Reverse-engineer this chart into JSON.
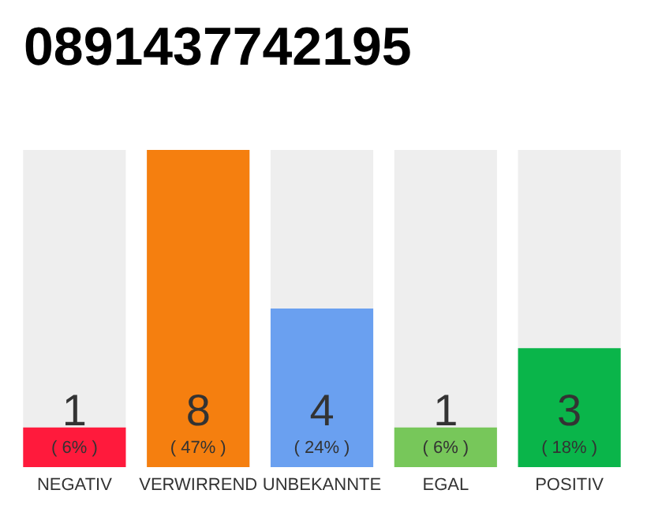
{
  "chart_data": {
    "type": "bar",
    "title": "0891437742195",
    "categories": [
      "NEGATIV",
      "VERWIRREND",
      "UNBEKANNTE",
      "EGAL",
      "POSITIV"
    ],
    "values": [
      1,
      8,
      4,
      1,
      3
    ],
    "colors": [
      "#ff1a3c",
      "#f57f0f",
      "#6aa0f0",
      "#77c75a",
      "#0ab54a"
    ],
    "data_labels": true,
    "annotations": [
      "( 6% )",
      "( 47% )",
      "( 24% )",
      "( 6% )",
      "( 18% )"
    ]
  }
}
